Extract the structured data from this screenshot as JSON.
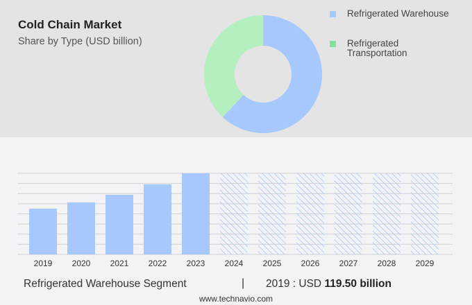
{
  "header": {
    "title": "Cold Chain Market",
    "subtitle": "Share by Type (USD billion)"
  },
  "chart_data": [
    {
      "type": "pie",
      "style": "donut",
      "legend": [
        {
          "label": "Refrigerated Warehouse",
          "color": "#a7c8fd"
        },
        {
          "label": "Refrigerated Transportation",
          "color": "#7ee39a"
        }
      ],
      "legend_placement": "right",
      "slices": [
        {
          "label": "Refrigerated Warehouse",
          "share": 62,
          "color": "#a7c8fd"
        },
        {
          "label": "Refrigerated Transportation",
          "share": 38,
          "color": "#b5efbf"
        }
      ]
    },
    {
      "type": "bar",
      "categories": [
        "2019",
        "2020",
        "2021",
        "2022",
        "2023",
        "2024",
        "2025",
        "2026",
        "2027",
        "2028",
        "2029"
      ],
      "values": [
        119.5,
        135.8,
        155.7,
        182.9,
        211.8,
        null,
        null,
        null,
        null,
        null,
        null
      ],
      "forecast_categories": [
        "2024",
        "2025",
        "2026",
        "2027",
        "2028",
        "2029"
      ],
      "ylim": [
        0,
        211.8
      ],
      "grid": true,
      "color": "#a7c8fd",
      "forecast_style": "hatched"
    }
  ],
  "footer": {
    "segment": "Refrigerated Warehouse Segment",
    "separator": "|",
    "year_label": "2019 : USD",
    "value": "119.50 billion",
    "source": "www.technavio.com"
  }
}
